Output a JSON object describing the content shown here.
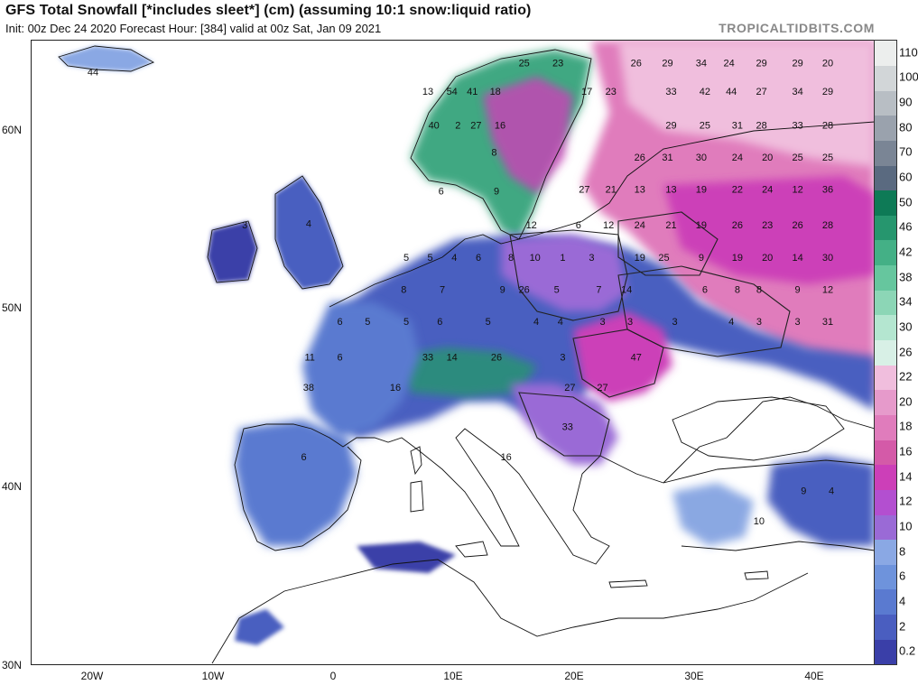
{
  "header": {
    "title": "GFS Total Snowfall [*includes sleet*] (cm) (assuming 10:1 snow:liquid ratio)",
    "subtitle": "Init: 00z Dec 24 2020   Forecast Hour: [384]   valid at 00z Sat, Jan 09 2021",
    "brand": "TROPICALTIDBITS.COM"
  },
  "axes": {
    "lat_labels": [
      "60N",
      "50N",
      "40N",
      "30N"
    ],
    "lon_labels": [
      "20W",
      "10W",
      "0",
      "10E",
      "20E",
      "30E",
      "40E"
    ]
  },
  "legend": {
    "levels": [
      "0.2",
      "2",
      "4",
      "6",
      "8",
      "10",
      "12",
      "14",
      "16",
      "18",
      "20",
      "22",
      "26",
      "30",
      "34",
      "38",
      "42",
      "46",
      "50",
      "60",
      "70",
      "80",
      "90",
      "100",
      "110"
    ],
    "colors": [
      "#3a3fa8",
      "#4a5ec0",
      "#5a7ad0",
      "#6e93dc",
      "#8aa8e4",
      "#9a6ad6",
      "#b34fd0",
      "#cc3fb8",
      "#d45aa8",
      "#e07cbc",
      "#e69acb",
      "#f0bedd",
      "#d8f0e6",
      "#b4e6d0",
      "#8cd6b6",
      "#66c69e",
      "#44b086",
      "#26966e",
      "#0e7a56",
      "#5a6a80",
      "#7a8595",
      "#9aa2ad",
      "#b8bec4",
      "#d2d6d8",
      "#eceeed"
    ],
    "scale": "snowfall cm"
  },
  "map": {
    "region": "Europe, North Africa, Middle East",
    "extent": {
      "lon": [
        -25,
        45
      ],
      "lat": [
        30,
        65
      ]
    },
    "values": [
      {
        "text": "44",
        "lon": -19.9,
        "lat": 63.2
      },
      {
        "text": "13",
        "lon": 7.9,
        "lat": 62.1
      },
      {
        "text": "54",
        "lon": 9.9,
        "lat": 62.1
      },
      {
        "text": "41",
        "lon": 11.6,
        "lat": 62.1
      },
      {
        "text": "18",
        "lon": 13.5,
        "lat": 62.1
      },
      {
        "text": "25",
        "lon": 15.9,
        "lat": 63.7
      },
      {
        "text": "23",
        "lon": 18.7,
        "lat": 63.7
      },
      {
        "text": "40",
        "lon": 8.4,
        "lat": 60.2
      },
      {
        "text": "2",
        "lon": 10.4,
        "lat": 60.2
      },
      {
        "text": "27",
        "lon": 11.9,
        "lat": 60.2
      },
      {
        "text": "16",
        "lon": 13.9,
        "lat": 60.2
      },
      {
        "text": "8",
        "lon": 13.4,
        "lat": 58.7
      },
      {
        "text": "6",
        "lon": 9.0,
        "lat": 56.5
      },
      {
        "text": "9",
        "lon": 13.6,
        "lat": 56.5
      },
      {
        "text": "4",
        "lon": -2.0,
        "lat": 54.7
      },
      {
        "text": "3",
        "lon": -7.3,
        "lat": 54.6
      },
      {
        "text": "12",
        "lon": 16.5,
        "lat": 54.6
      },
      {
        "text": "6",
        "lon": 20.4,
        "lat": 54.6
      },
      {
        "text": "12",
        "lon": 22.9,
        "lat": 54.6
      },
      {
        "text": "5",
        "lon": 6.1,
        "lat": 52.8
      },
      {
        "text": "5",
        "lon": 8.1,
        "lat": 52.8
      },
      {
        "text": "4",
        "lon": 10.1,
        "lat": 52.8
      },
      {
        "text": "6",
        "lon": 12.1,
        "lat": 52.8
      },
      {
        "text": "8",
        "lon": 14.8,
        "lat": 52.8
      },
      {
        "text": "10",
        "lon": 16.8,
        "lat": 52.8
      },
      {
        "text": "1",
        "lon": 19.1,
        "lat": 52.8
      },
      {
        "text": "3",
        "lon": 21.5,
        "lat": 52.8
      },
      {
        "text": "19",
        "lon": 25.5,
        "lat": 52.8
      },
      {
        "text": "25",
        "lon": 27.5,
        "lat": 52.8
      },
      {
        "text": "9",
        "lon": 30.6,
        "lat": 52.8
      },
      {
        "text": "19",
        "lon": 33.6,
        "lat": 52.8
      },
      {
        "text": "20",
        "lon": 36.1,
        "lat": 52.8
      },
      {
        "text": "14",
        "lon": 38.6,
        "lat": 52.8
      },
      {
        "text": "30",
        "lon": 41.1,
        "lat": 52.8
      },
      {
        "text": "8",
        "lon": 5.9,
        "lat": 51.0
      },
      {
        "text": "7",
        "lon": 9.1,
        "lat": 51.0
      },
      {
        "text": "9",
        "lon": 14.1,
        "lat": 51.0
      },
      {
        "text": "26",
        "lon": 15.9,
        "lat": 51.0
      },
      {
        "text": "5",
        "lon": 18.6,
        "lat": 51.0
      },
      {
        "text": "7",
        "lon": 22.1,
        "lat": 51.0
      },
      {
        "text": "14",
        "lon": 24.4,
        "lat": 51.0
      },
      {
        "text": "6",
        "lon": 30.9,
        "lat": 51.0
      },
      {
        "text": "8",
        "lon": 33.6,
        "lat": 51.0
      },
      {
        "text": "8",
        "lon": 35.4,
        "lat": 51.0
      },
      {
        "text": "9",
        "lon": 38.6,
        "lat": 51.0
      },
      {
        "text": "12",
        "lon": 41.1,
        "lat": 51.0
      },
      {
        "text": "6",
        "lon": 0.6,
        "lat": 49.2
      },
      {
        "text": "5",
        "lon": 2.9,
        "lat": 49.2
      },
      {
        "text": "5",
        "lon": 6.1,
        "lat": 49.2
      },
      {
        "text": "6",
        "lon": 8.9,
        "lat": 49.2
      },
      {
        "text": "5",
        "lon": 12.9,
        "lat": 49.2
      },
      {
        "text": "4",
        "lon": 16.9,
        "lat": 49.2
      },
      {
        "text": "4",
        "lon": 18.9,
        "lat": 49.2
      },
      {
        "text": "3",
        "lon": 22.4,
        "lat": 49.2
      },
      {
        "text": "3",
        "lon": 24.7,
        "lat": 49.2
      },
      {
        "text": "3",
        "lon": 28.4,
        "lat": 49.2
      },
      {
        "text": "4",
        "lon": 33.1,
        "lat": 49.2
      },
      {
        "text": "3",
        "lon": 35.4,
        "lat": 49.2
      },
      {
        "text": "3",
        "lon": 38.6,
        "lat": 49.2
      },
      {
        "text": "11",
        "lon": -1.9,
        "lat": 47.2
      },
      {
        "text": "6",
        "lon": 0.6,
        "lat": 47.2
      },
      {
        "text": "33",
        "lon": 7.9,
        "lat": 47.2
      },
      {
        "text": "14",
        "lon": 9.9,
        "lat": 47.2
      },
      {
        "text": "26",
        "lon": 13.6,
        "lat": 47.2
      },
      {
        "text": "3",
        "lon": 19.1,
        "lat": 47.2
      },
      {
        "text": "47",
        "lon": 25.2,
        "lat": 47.2
      },
      {
        "text": "38",
        "lon": -2.0,
        "lat": 45.5
      },
      {
        "text": "16",
        "lon": 5.2,
        "lat": 45.5
      },
      {
        "text": "27",
        "lon": 19.7,
        "lat": 45.5
      },
      {
        "text": "27",
        "lon": 22.4,
        "lat": 45.5
      },
      {
        "text": "33",
        "lon": 19.5,
        "lat": 43.3
      },
      {
        "text": "6",
        "lon": -2.4,
        "lat": 41.6
      },
      {
        "text": "16",
        "lon": 14.4,
        "lat": 41.6
      },
      {
        "text": "9",
        "lon": 39.1,
        "lat": 39.7
      },
      {
        "text": "4",
        "lon": 41.4,
        "lat": 39.7
      },
      {
        "text": "10",
        "lon": 35.4,
        "lat": 38.0
      },
      {
        "text": "26",
        "lon": 25.2,
        "lat": 63.7
      },
      {
        "text": "29",
        "lon": 27.8,
        "lat": 63.7
      },
      {
        "text": "34",
        "lon": 30.6,
        "lat": 63.7
      },
      {
        "text": "24",
        "lon": 32.9,
        "lat": 63.7
      },
      {
        "text": "29",
        "lon": 35.6,
        "lat": 63.7
      },
      {
        "text": "29",
        "lon": 38.6,
        "lat": 63.7
      },
      {
        "text": "20",
        "lon": 41.1,
        "lat": 63.7
      },
      {
        "text": "17",
        "lon": 21.1,
        "lat": 62.1
      },
      {
        "text": "23",
        "lon": 23.1,
        "lat": 62.1
      },
      {
        "text": "33",
        "lon": 28.1,
        "lat": 62.1
      },
      {
        "text": "42",
        "lon": 30.9,
        "lat": 62.1
      },
      {
        "text": "44",
        "lon": 33.1,
        "lat": 62.1
      },
      {
        "text": "27",
        "lon": 35.6,
        "lat": 62.1
      },
      {
        "text": "34",
        "lon": 38.6,
        "lat": 62.1
      },
      {
        "text": "29",
        "lon": 41.1,
        "lat": 62.1
      },
      {
        "text": "29",
        "lon": 28.1,
        "lat": 60.2
      },
      {
        "text": "25",
        "lon": 30.9,
        "lat": 60.2
      },
      {
        "text": "31",
        "lon": 33.6,
        "lat": 60.2
      },
      {
        "text": "28",
        "lon": 35.6,
        "lat": 60.2
      },
      {
        "text": "33",
        "lon": 38.6,
        "lat": 60.2
      },
      {
        "text": "28",
        "lon": 41.1,
        "lat": 60.2
      },
      {
        "text": "26",
        "lon": 25.5,
        "lat": 58.4
      },
      {
        "text": "31",
        "lon": 27.8,
        "lat": 58.4
      },
      {
        "text": "30",
        "lon": 30.6,
        "lat": 58.4
      },
      {
        "text": "24",
        "lon": 33.6,
        "lat": 58.4
      },
      {
        "text": "20",
        "lon": 36.1,
        "lat": 58.4
      },
      {
        "text": "25",
        "lon": 38.6,
        "lat": 58.4
      },
      {
        "text": "25",
        "lon": 41.1,
        "lat": 58.4
      },
      {
        "text": "27",
        "lon": 20.9,
        "lat": 56.6
      },
      {
        "text": "21",
        "lon": 23.1,
        "lat": 56.6
      },
      {
        "text": "13",
        "lon": 25.5,
        "lat": 56.6
      },
      {
        "text": "13",
        "lon": 28.1,
        "lat": 56.6
      },
      {
        "text": "19",
        "lon": 30.6,
        "lat": 56.6
      },
      {
        "text": "22",
        "lon": 33.6,
        "lat": 56.6
      },
      {
        "text": "24",
        "lon": 36.1,
        "lat": 56.6
      },
      {
        "text": "12",
        "lon": 38.6,
        "lat": 56.6
      },
      {
        "text": "36",
        "lon": 41.1,
        "lat": 56.6
      },
      {
        "text": "24",
        "lon": 25.5,
        "lat": 54.6
      },
      {
        "text": "21",
        "lon": 28.1,
        "lat": 54.6
      },
      {
        "text": "19",
        "lon": 30.6,
        "lat": 54.6
      },
      {
        "text": "26",
        "lon": 33.6,
        "lat": 54.6
      },
      {
        "text": "23",
        "lon": 36.1,
        "lat": 54.6
      },
      {
        "text": "26",
        "lon": 38.6,
        "lat": 54.6
      },
      {
        "text": "28",
        "lon": 41.1,
        "lat": 54.6
      },
      {
        "text": "31",
        "lon": 41.1,
        "lat": 49.2
      }
    ]
  }
}
